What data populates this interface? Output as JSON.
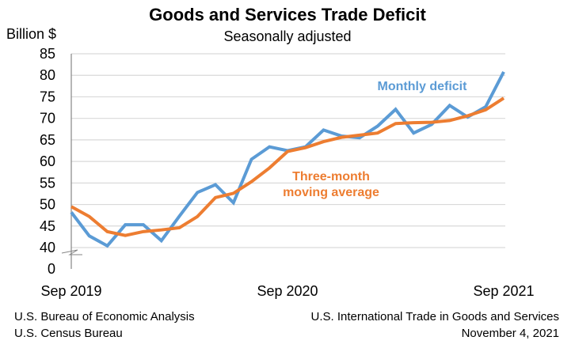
{
  "chart_data": {
    "type": "line",
    "title": "Goods and Services Trade Deficit",
    "subtitle": "Seasonally adjusted",
    "ylabel": "Billion $",
    "ylim": [
      0,
      85
    ],
    "axis_break": [
      0,
      40
    ],
    "y_ticks": [
      "0",
      "40",
      "45",
      "50",
      "55",
      "60",
      "65",
      "70",
      "75",
      "80",
      "85"
    ],
    "x_tick_labels": [
      "Sep 2019",
      "Sep 2020",
      "Sep 2021"
    ],
    "x": [
      "Sep 2019",
      "Oct 2019",
      "Nov 2019",
      "Dec 2019",
      "Jan 2020",
      "Feb 2020",
      "Mar 2020",
      "Apr 2020",
      "May 2020",
      "Jun 2020",
      "Jul 2020",
      "Aug 2020",
      "Sep 2020",
      "Oct 2020",
      "Nov 2020",
      "Dec 2020",
      "Jan 2021",
      "Feb 2021",
      "Mar 2021",
      "Apr 2021",
      "May 2021",
      "Jun 2021",
      "Jul 2021",
      "Aug 2021",
      "Sep 2021"
    ],
    "grid": "horizontal",
    "series": [
      {
        "name": "Monthly deficit",
        "color": "#5b9bd5",
        "values": [
          48.2,
          42.7,
          40.4,
          45.3,
          45.3,
          41.6,
          47.3,
          52.8,
          54.6,
          50.4,
          60.5,
          63.4,
          62.5,
          63.4,
          67.3,
          65.9,
          65.5,
          68.2,
          72.1,
          66.6,
          68.6,
          73.0,
          70.3,
          72.7,
          80.8
        ]
      },
      {
        "name": "Three-month moving average",
        "label_lines": [
          "Three-month",
          "moving average"
        ],
        "color": "#ed7d31",
        "values": [
          49.5,
          47.2,
          43.7,
          42.8,
          43.7,
          44.1,
          44.6,
          47.2,
          51.6,
          52.6,
          55.3,
          58.5,
          62.3,
          63.2,
          64.6,
          65.6,
          66.1,
          66.6,
          68.8,
          69.0,
          69.1,
          69.5,
          70.6,
          72.0,
          74.7
        ]
      }
    ]
  },
  "footer": {
    "left_1": "U.S. Bureau of Economic Analysis",
    "left_2": "U.S. Census Bureau",
    "right_1": "U.S. International Trade in Goods and Services",
    "right_2": "November 4, 2021"
  }
}
